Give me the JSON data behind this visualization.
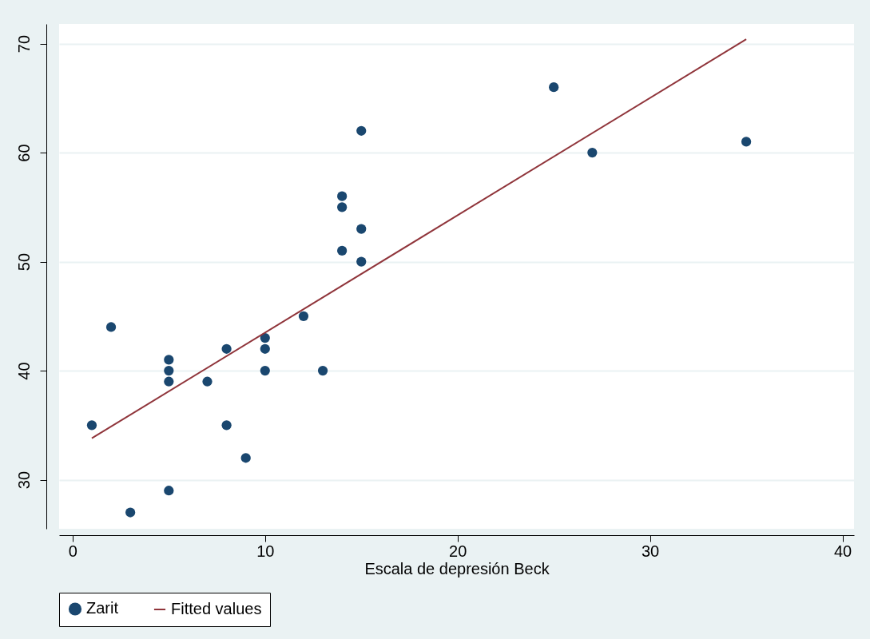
{
  "chart_data": {
    "type": "scatter",
    "xlabel": "Escala de depresión Beck",
    "xlim": [
      -0.7,
      40.6
    ],
    "xticks": [
      0,
      10,
      20,
      30,
      40
    ],
    "ylim": [
      25.5,
      71.8
    ],
    "yticks": [
      30,
      40,
      50,
      60,
      70
    ],
    "grid": "y",
    "legend": "bottom",
    "series": [
      {
        "name": "Zarit",
        "marker": "circle",
        "color": "#1a476f",
        "x": [
          1,
          2,
          3,
          5,
          5,
          5,
          5,
          7,
          8,
          8,
          9,
          10,
          10,
          10,
          12,
          13,
          14,
          14,
          14,
          15,
          15,
          15,
          25,
          27,
          35
        ],
        "values": [
          35,
          44,
          27,
          29,
          39,
          40,
          41,
          39,
          42,
          35,
          32,
          43,
          42,
          40,
          45,
          40,
          56,
          55,
          51,
          62,
          53,
          50,
          66,
          60,
          61
        ]
      },
      {
        "name": "Fitted values",
        "type": "line",
        "color": "#90353b",
        "x": [
          1,
          35
        ],
        "values": [
          33.8,
          70.4
        ]
      }
    ]
  }
}
